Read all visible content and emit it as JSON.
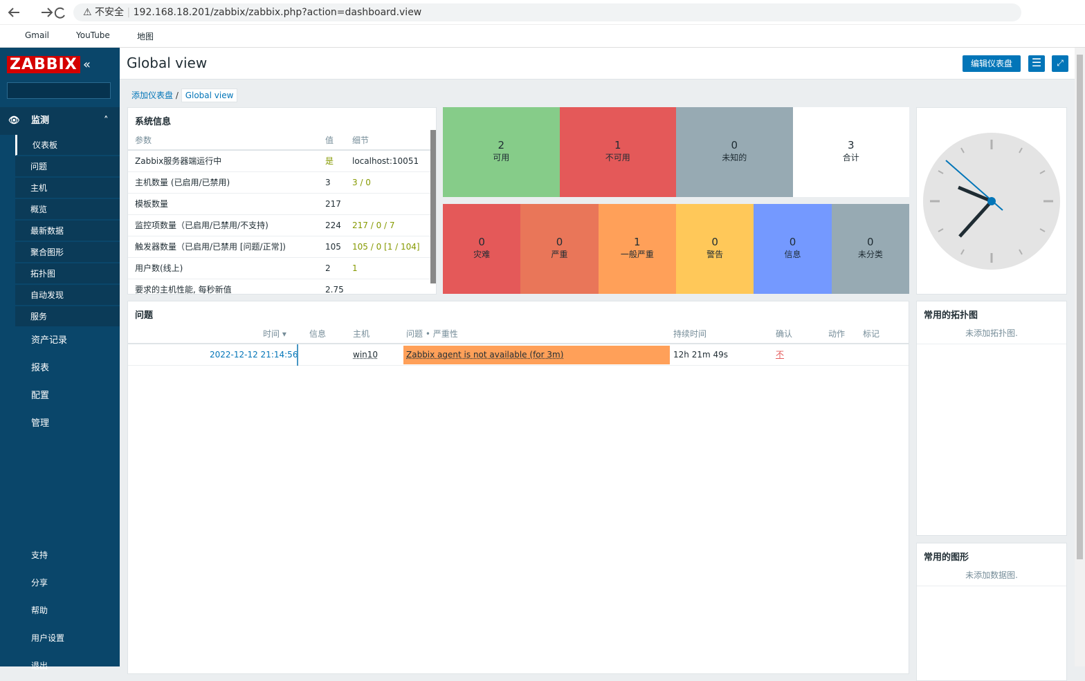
{
  "browser": {
    "security": "不安全",
    "url": "192.168.18.201/zabbix/zabbix.php?action=dashboard.view",
    "bookmarks": [
      "Gmail",
      "YouTube",
      "地图"
    ]
  },
  "sidebar": {
    "logo": "ZABBIX",
    "monitoring": {
      "label": "监测",
      "items": [
        "仪表板",
        "问题",
        "主机",
        "概览",
        "最新数据",
        "聚合图形",
        "拓扑图",
        "自动发现",
        "服务"
      ]
    },
    "sections": [
      "资产记录",
      "报表",
      "配置",
      "管理"
    ],
    "bottom": [
      "支持",
      "分享",
      "帮助",
      "用户设置",
      "退出"
    ]
  },
  "header": {
    "title": "Global view",
    "edit_button": "编辑仪表盘",
    "breadcrumb": [
      "添加仪表盘",
      "Global view"
    ]
  },
  "system_info": {
    "title": "系统信息",
    "columns": [
      "参数",
      "值",
      "细节"
    ],
    "rows": [
      {
        "param": "Zabbix服务器端运行中",
        "value": "是",
        "detail": "localhost:10051"
      },
      {
        "param": "主机数量 (已启用/已禁用)",
        "value": "3",
        "detail": "3 / 0"
      },
      {
        "param": "模板数量",
        "value": "217"
      },
      {
        "param": "监控项数量（已启用/已禁用/不支持)",
        "value": "224",
        "detail": "217 / 0 / 7"
      },
      {
        "param": "触发器数量（已启用/已禁用 [问题/正常])",
        "value": "105",
        "detail": "105 / 0 [1 / 104]"
      },
      {
        "param": "用户数(线上)",
        "value": "2",
        "detail": "1"
      },
      {
        "param": "要求的主机性能, 每秒新值",
        "value": "2.75"
      }
    ]
  },
  "host_availability": [
    {
      "count": "2",
      "label": "可用",
      "color": "#86cc89"
    },
    {
      "count": "1",
      "label": "不可用",
      "color": "#e45959"
    },
    {
      "count": "0",
      "label": "未知的",
      "color": "#97aab3"
    },
    {
      "count": "3",
      "label": "合计",
      "color": "#ffffff"
    }
  ],
  "severity": [
    {
      "count": "0",
      "label": "灾难",
      "color": "#e45959"
    },
    {
      "count": "0",
      "label": "严重",
      "color": "#e97659"
    },
    {
      "count": "1",
      "label": "一般严重",
      "color": "#ffa059"
    },
    {
      "count": "0",
      "label": "警告",
      "color": "#ffc859"
    },
    {
      "count": "0",
      "label": "信息",
      "color": "#7499ff"
    },
    {
      "count": "0",
      "label": "未分类",
      "color": "#97aab3"
    }
  ],
  "problems": {
    "title": "问题",
    "columns": [
      "时间 ▾",
      "信息",
      "主机",
      "问题 • 严重性",
      "持续时间",
      "确认",
      "动作",
      "标记"
    ],
    "rows": [
      {
        "time": "2022-12-12 21:14:56",
        "host": "win10",
        "problem": "Zabbix agent is not available (for 3m)",
        "duration": "12h 21m 49s",
        "ack": "不"
      }
    ]
  },
  "maps": {
    "title": "常用的拓扑图",
    "empty": "未添加拓扑图."
  },
  "graphs": {
    "title": "常用的图形",
    "empty": "未添加数据图."
  }
}
